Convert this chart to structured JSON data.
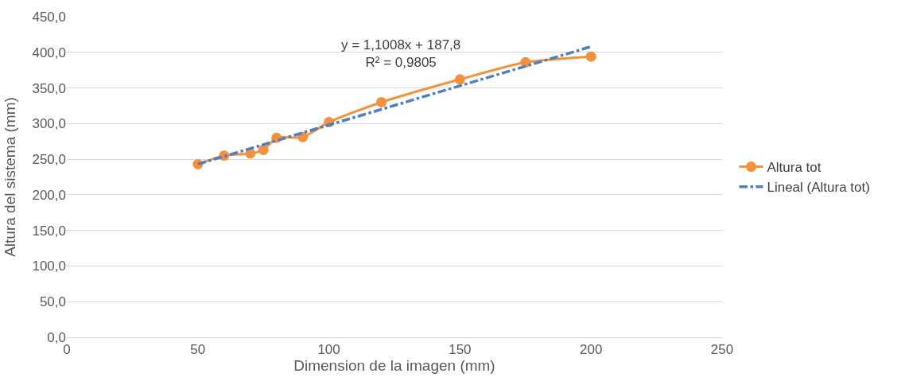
{
  "chart_data": {
    "type": "line",
    "xlabel": "Dimension de la imagen (mm)",
    "ylabel": "Altura del sistema (mm)",
    "x": [
      50,
      60,
      70,
      75,
      80,
      90,
      100,
      120,
      150,
      175,
      200
    ],
    "series": [
      {
        "name": "Altura tot",
        "color": "#f4913e",
        "values": [
          243,
          255,
          258,
          263,
          280,
          281,
          302,
          330,
          362,
          386,
          394
        ],
        "marker": "circle",
        "line_style": "solid"
      },
      {
        "name": "Lineal (Altura tot)",
        "type": "line",
        "color": "#4e7fc3",
        "x": [
          50,
          200
        ],
        "values": [
          243,
          408
        ],
        "marker": "none",
        "line_style": "dashdot"
      }
    ],
    "xlim": [
      0,
      250
    ],
    "xticks": [
      0,
      50,
      100,
      150,
      200,
      250
    ],
    "ylim": [
      0,
      450
    ],
    "yticks": [
      {
        "value": 0,
        "label": "0,0"
      },
      {
        "value": 50,
        "label": "50,0"
      },
      {
        "value": 100,
        "label": "100,0"
      },
      {
        "value": 150,
        "label": "150,0"
      },
      {
        "value": 200,
        "label": "200,0"
      },
      {
        "value": 250,
        "label": "250,0"
      },
      {
        "value": 300,
        "label": "300,0"
      },
      {
        "value": 350,
        "label": "350,0"
      },
      {
        "value": 400,
        "label": "400,0"
      },
      {
        "value": 450,
        "label": "450,0"
      }
    ],
    "annotations": [
      "y = 1,1008x + 187,8\nR² = 0,9805"
    ],
    "grid": "y",
    "legend": "right"
  }
}
